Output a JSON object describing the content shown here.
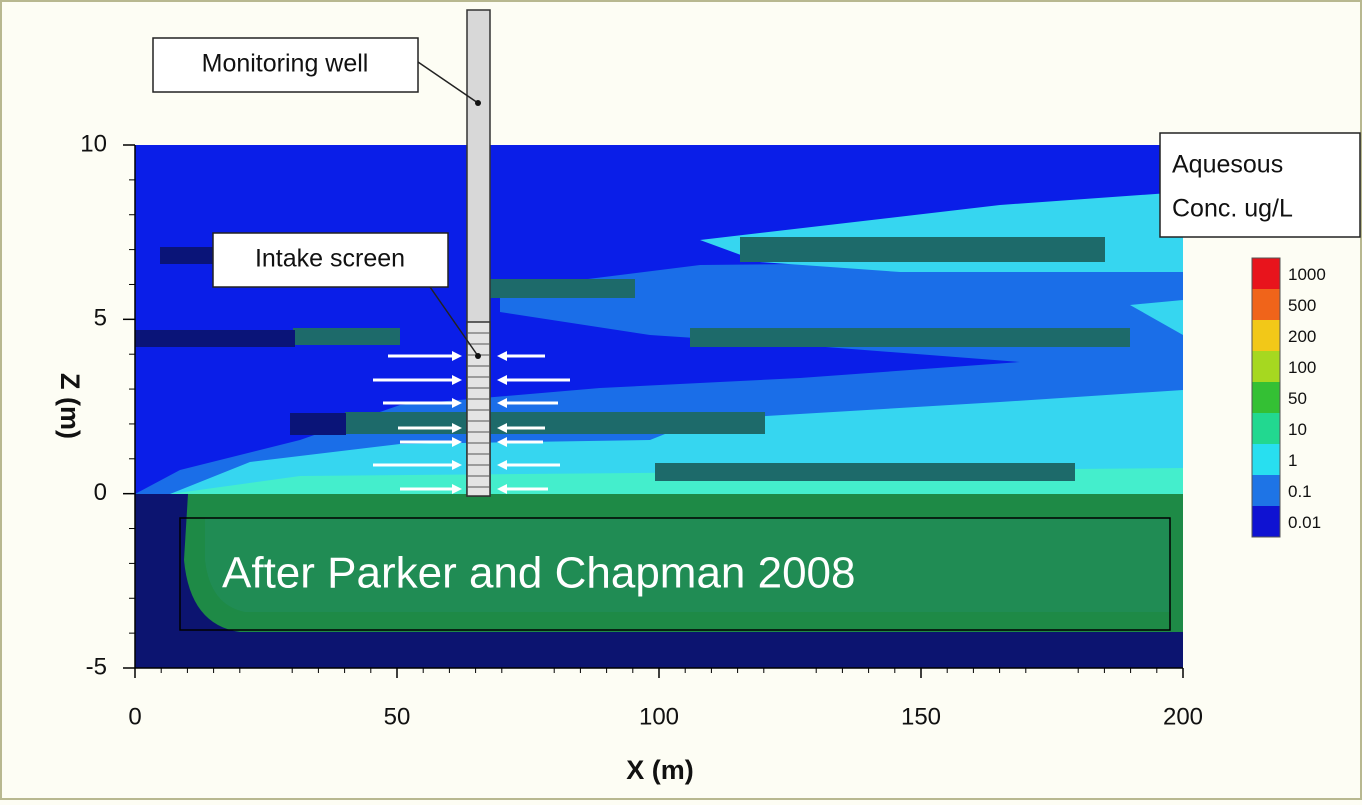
{
  "chart_data": {
    "type": "contour",
    "xlabel": "X (m)",
    "ylabel": "Z (m)",
    "xlim": [
      0,
      200
    ],
    "xticks": [
      0,
      50,
      100,
      150,
      200
    ],
    "ylim": [
      -5,
      10
    ],
    "yticks": [
      -5,
      0,
      5,
      10
    ],
    "colorbar_title": [
      "Aquesous",
      "Conc. ug/L"
    ],
    "levels": [
      1000,
      500,
      200,
      100,
      50,
      10,
      1,
      0.1,
      0.01
    ],
    "level_colors": [
      "#e8141c",
      "#f0641a",
      "#f2c818",
      "#a6d820",
      "#34c034",
      "#22d890",
      "#28dff0",
      "#1e74e6",
      "#0f12d2"
    ],
    "annotations": [
      "Monitoring well",
      "Intake screen",
      "After Parker and Chapman 2008"
    ]
  }
}
